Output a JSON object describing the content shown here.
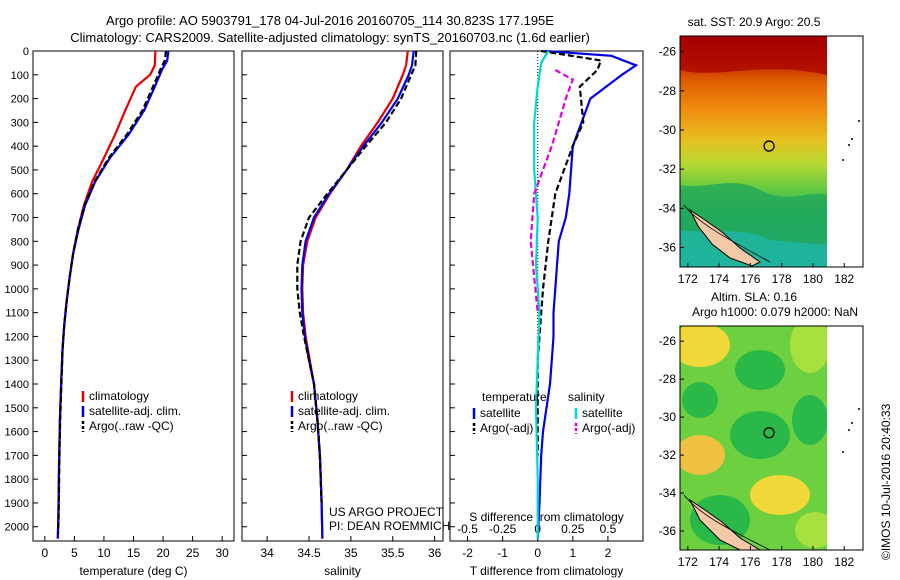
{
  "header": {
    "line1": "Argo profile: AO 5903791_178 04-Jul-2016 20160705_114 30.823S 177.195E",
    "line2": "Climatology: CARS2009. Satellite-adjusted climatology: synTS_20160703.nc (1.6d earlier)"
  },
  "side_stamp": "©IMOS 10-Jul-2016 20:40:33",
  "colors": {
    "clim": "#e00000",
    "sat": "#0000e6",
    "argo": "#000000",
    "sat_s": "#00d8d8",
    "argo_s": "#e000e0"
  },
  "chart_data": [
    {
      "type": "line",
      "xlabel": "temperature (deg C)",
      "xlim": [
        -2,
        32
      ],
      "xticks": [
        0,
        5,
        10,
        15,
        20,
        25,
        30
      ],
      "ylim": [
        0,
        2060
      ],
      "yticks": [
        0,
        100,
        200,
        300,
        400,
        500,
        600,
        700,
        800,
        900,
        1000,
        1100,
        1200,
        1300,
        1400,
        1500,
        1600,
        1700,
        1800,
        1900,
        2000
      ],
      "legend": [
        "climatology",
        "satellite-adj. clim.",
        "Argo(..raw -QC)"
      ],
      "series": [
        {
          "name": "climatology",
          "color": "clim",
          "dash": "",
          "x": [
            18.7,
            18.6,
            17.8,
            15.4,
            13.6,
            11.9,
            10.0,
            8.0,
            6.6,
            5.6,
            4.8,
            4.2,
            3.7,
            3.3,
            3.0,
            2.75,
            2.55,
            2.4,
            2.3,
            2.2
          ],
          "y": [
            0,
            60,
            100,
            150,
            250,
            350,
            450,
            550,
            650,
            750,
            850,
            950,
            1050,
            1150,
            1250,
            1400,
            1550,
            1750,
            1950,
            2050
          ]
        },
        {
          "name": "satellite-adj. clim.",
          "color": "sat",
          "dash": "",
          "x": [
            20.9,
            20.7,
            19.8,
            18.6,
            16.8,
            14.2,
            11.0,
            8.5,
            6.8,
            5.7,
            4.8,
            4.2,
            3.7,
            3.3,
            3.0,
            2.75,
            2.55,
            2.4,
            2.3,
            2.2
          ],
          "y": [
            0,
            40,
            80,
            150,
            250,
            350,
            450,
            550,
            650,
            750,
            850,
            950,
            1050,
            1150,
            1250,
            1400,
            1550,
            1750,
            1950,
            2050
          ]
        },
        {
          "name": "Argo(..raw -QC)",
          "color": "argo",
          "dash": "6,3",
          "x": [
            20.5,
            20.3,
            19.5,
            18.3,
            16.5,
            13.9,
            10.8,
            8.4,
            6.7,
            5.6,
            4.8,
            4.2,
            3.7,
            3.3,
            3.0,
            2.8,
            2.6,
            2.45,
            2.35,
            2.25
          ],
          "y": [
            0,
            40,
            80,
            150,
            250,
            350,
            450,
            550,
            650,
            750,
            850,
            950,
            1050,
            1150,
            1250,
            1400,
            1550,
            1750,
            1950,
            2030
          ]
        }
      ]
    },
    {
      "type": "line",
      "xlabel": "salinity",
      "xlim": [
        33.7,
        36.1
      ],
      "xticks": [
        34,
        34.5,
        35,
        35.5,
        36
      ],
      "ylim": [
        0,
        2060
      ],
      "legend": [
        "climatology",
        "satellite-adj. clim.",
        "Argo(..raw -QC)"
      ],
      "annotation": [
        "US ARGO PROJECT",
        "PI: DEAN ROEMMICH"
      ],
      "series": [
        {
          "name": "climatology",
          "color": "clim",
          "dash": "",
          "x": [
            35.68,
            35.66,
            35.62,
            35.5,
            35.32,
            35.12,
            34.95,
            34.75,
            34.58,
            34.48,
            34.43,
            34.42,
            34.43,
            34.46,
            34.51,
            34.56,
            34.6,
            34.63,
            34.65,
            34.66
          ],
          "y": [
            0,
            60,
            100,
            200,
            300,
            400,
            500,
            600,
            700,
            800,
            900,
            1000,
            1100,
            1200,
            1300,
            1400,
            1550,
            1700,
            1900,
            2050
          ]
        },
        {
          "name": "satellite-adj. clim.",
          "color": "sat",
          "dash": "",
          "x": [
            35.75,
            35.73,
            35.69,
            35.56,
            35.37,
            35.15,
            34.95,
            34.74,
            34.56,
            34.46,
            34.42,
            34.41,
            34.42,
            34.45,
            34.5,
            34.56,
            34.6,
            34.63,
            34.65,
            34.66
          ],
          "y": [
            0,
            60,
            100,
            200,
            300,
            400,
            500,
            600,
            700,
            800,
            900,
            1000,
            1100,
            1200,
            1300,
            1400,
            1550,
            1700,
            1900,
            2050
          ]
        },
        {
          "name": "Argo(..raw -QC)",
          "color": "argo",
          "dash": "6,3",
          "x": [
            35.78,
            35.77,
            35.72,
            35.6,
            35.42,
            35.18,
            34.95,
            34.72,
            34.5,
            34.4,
            34.36,
            34.36,
            34.39,
            34.44,
            34.5,
            34.56,
            34.6,
            34.63,
            34.65
          ],
          "y": [
            0,
            60,
            100,
            200,
            300,
            400,
            500,
            600,
            700,
            800,
            900,
            1000,
            1100,
            1200,
            1300,
            1400,
            1550,
            1700,
            1900
          ]
        }
      ]
    },
    {
      "type": "line",
      "xlabel": "T difference from climatology",
      "top_axis_label": "S difference from climatology",
      "xlim": [
        -2.5,
        3
      ],
      "xticks": [
        -2,
        -1,
        0,
        1,
        2
      ],
      "top_ticks": [
        "-0.5",
        "-0.25",
        "0",
        "0.25",
        "0.5"
      ],
      "top_tick_x": [
        -2,
        -1,
        0,
        1,
        2
      ],
      "ylim": [
        0,
        2060
      ],
      "legend_temperature": {
        "title": "temperature",
        "entries": [
          "satellite",
          "Argo(-adj)"
        ]
      },
      "legend_salinity": {
        "title": "salinity",
        "entries": [
          "satellite",
          "Argo(-adj)"
        ]
      },
      "series": [
        {
          "name": "satellite",
          "color": "sat",
          "dash": "",
          "x": [
            0.2,
            2.1,
            2.8,
            2.4,
            1.5,
            1.0,
            0.9,
            0.8,
            0.6,
            0.55,
            0.5,
            0.45,
            0.45,
            0.4,
            0.35,
            0.25,
            0.15,
            0.1,
            0.05,
            0.0
          ],
          "y": [
            0,
            20,
            60,
            100,
            200,
            400,
            600,
            700,
            800,
            900,
            1000,
            1100,
            1200,
            1300,
            1400,
            1500,
            1600,
            1700,
            1900,
            2050
          ]
        },
        {
          "name": "Argo(-adj)",
          "color": "argo",
          "dash": "6,3",
          "x": [
            0.1,
            1.8,
            1.7,
            1.2,
            1.3,
            1.0,
            0.5,
            0.4,
            0.3,
            0.15,
            0.1,
            0.05,
            0.0,
            0.0,
            0.0
          ],
          "y": [
            0,
            40,
            80,
            150,
            300,
            400,
            600,
            700,
            800,
            1000,
            1100,
            1200,
            1300,
            1500,
            1700
          ]
        },
        {
          "name": "satellite",
          "color": "sat_s",
          "dash": "",
          "x": [
            0.3,
            0.1,
            0.0,
            -0.1,
            -0.1,
            0.0,
            -0.05,
            0.05,
            0.0,
            -0.05,
            0.0,
            0.0
          ],
          "y": [
            0,
            50,
            150,
            300,
            500,
            700,
            900,
            1100,
            1300,
            1500,
            1800,
            2050
          ]
        },
        {
          "name": "Argo(-adj)",
          "color": "argo_s",
          "dash": "6,3",
          "x": [
            0.5,
            1.0,
            0.8,
            0.6,
            0.4,
            -0.1,
            -0.2,
            -0.1,
            0.0
          ],
          "y": [
            80,
            120,
            200,
            300,
            400,
            600,
            800,
            950,
            1100
          ]
        }
      ]
    },
    {
      "type": "heatmap",
      "title": "sat. SST: 20.9 Argo: 20.5",
      "xlim": [
        171.5,
        183.2
      ],
      "xticks": [
        172,
        174,
        176,
        178,
        180,
        182
      ],
      "ylim": [
        -37,
        -25.2
      ],
      "yticks": [
        -26,
        -28,
        -30,
        -32,
        -34,
        -36
      ],
      "marker": {
        "lon": 177.195,
        "lat": -30.823
      }
    },
    {
      "type": "heatmap",
      "title_lines": [
        "Altim. SLA: 0.16",
        "Argo h1000: 0.079 h2000: NaN"
      ],
      "xlim": [
        171.5,
        183.2
      ],
      "xticks": [
        172,
        174,
        176,
        178,
        180,
        182
      ],
      "ylim": [
        -37,
        -25.2
      ],
      "yticks": [
        -26,
        -28,
        -30,
        -32,
        -34,
        -36
      ],
      "marker": {
        "lon": 177.195,
        "lat": -30.823
      }
    }
  ]
}
